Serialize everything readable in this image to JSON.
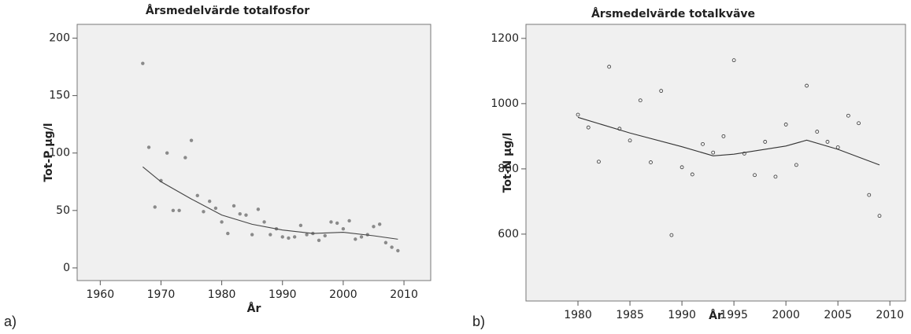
{
  "chart_data": [
    {
      "type": "scatter",
      "title": "Årsmedelvärde totalfosfor",
      "x_label": "År",
      "y_label": "Tot-P µg/l",
      "label": "a)",
      "marker": "filled",
      "point_color": "#8a8a8a",
      "line_color": "#444444",
      "xlim": [
        1956.2,
        2014.4
      ],
      "ylim": [
        -11,
        212
      ],
      "xticks": [
        1960,
        1970,
        1980,
        1990,
        2000,
        2010
      ],
      "yticks": [
        0,
        50,
        100,
        150,
        200
      ],
      "points": {
        "x": [
          1967,
          1968,
          1969,
          1970,
          1971,
          1972,
          1973,
          1974,
          1975,
          1976,
          1977,
          1978,
          1979,
          1980,
          1981,
          1982,
          1983,
          1984,
          1985,
          1986,
          1987,
          1988,
          1989,
          1990,
          1991,
          1992,
          1993,
          1994,
          1995,
          1996,
          1997,
          1998,
          1999,
          2000,
          2001,
          2002,
          2003,
          2004,
          2005,
          2006,
          2007,
          2008,
          2009
        ],
        "y": [
          178,
          105,
          53,
          76,
          100,
          50,
          50,
          96,
          111,
          63,
          49,
          58,
          52,
          40,
          30,
          54,
          47,
          46,
          29,
          51,
          40,
          29,
          34,
          27,
          26,
          27,
          37,
          29,
          30,
          24,
          28,
          40,
          39,
          34,
          41,
          25,
          27,
          29,
          36,
          38,
          22,
          18,
          15
        ]
      },
      "trend": {
        "x": [
          1967,
          1970,
          1975,
          1980,
          1985,
          1990,
          1995,
          2000,
          2005,
          2009
        ],
        "y": [
          88,
          75,
          60,
          46,
          38,
          33,
          30,
          31,
          28,
          25
        ]
      }
    },
    {
      "type": "scatter",
      "title": "Årsmedelvärde totalkväve",
      "x_label": "År",
      "y_label": "Tot-N µg/l",
      "label": "b)",
      "marker": "open",
      "point_color": "#333333",
      "line_color": "#333333",
      "xlim": [
        1975,
        2011.5
      ],
      "ylim": [
        395,
        1243
      ],
      "xticks": [
        1980,
        1985,
        1990,
        1995,
        2000,
        2005,
        2010
      ],
      "yticks": [
        600,
        800,
        1000,
        1200
      ],
      "points": {
        "x": [
          1980,
          1981,
          1982,
          1983,
          1984,
          1985,
          1986,
          1987,
          1988,
          1989,
          1990,
          1991,
          1992,
          1993,
          1994,
          1995,
          1996,
          1997,
          1998,
          1999,
          2000,
          2001,
          2002,
          2003,
          2004,
          2005,
          2006,
          2007,
          2008,
          2009
        ],
        "y": [
          966,
          927,
          822,
          1113,
          923,
          887,
          1010,
          820,
          1039,
          597,
          805,
          783,
          876,
          850,
          900,
          1133,
          847,
          781,
          883,
          776,
          936,
          812,
          1055,
          914,
          883,
          866,
          963,
          940,
          720,
          656
        ]
      },
      "trend": {
        "x": [
          1980,
          1985,
          1990,
          1993,
          1995,
          2000,
          2002,
          2005,
          2009
        ],
        "y": [
          958,
          910,
          868,
          840,
          845,
          870,
          888,
          860,
          812
        ]
      }
    }
  ]
}
